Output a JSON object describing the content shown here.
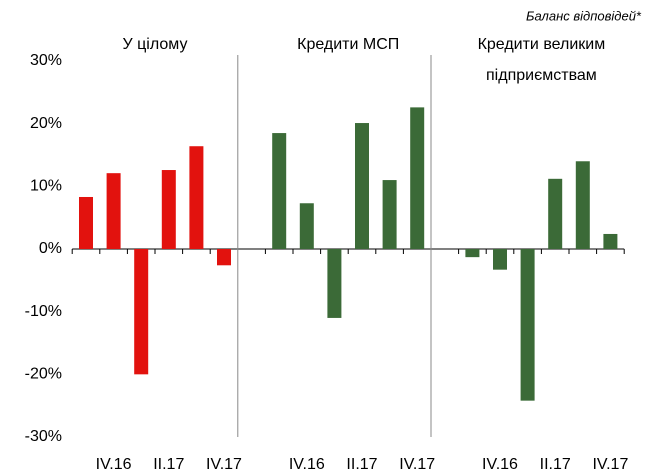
{
  "note": "Баланс відповідей*",
  "chart_data": [
    {
      "type": "bar",
      "title": [
        "У цілому"
      ],
      "color": "#e2120e",
      "categories": [
        null,
        "IV.16",
        null,
        "II.17",
        null,
        "IV.17"
      ],
      "values": [
        8.3,
        12.1,
        -20,
        12.6,
        16.4,
        -2.6
      ],
      "ylim": [
        -30,
        30
      ],
      "yticks": [
        {
          "value": -30,
          "label": "-30%"
        },
        {
          "value": -20,
          "label": "-20%"
        },
        {
          "value": -10,
          "label": "-10%"
        },
        {
          "value": 0,
          "label": "0%"
        },
        {
          "value": 10,
          "label": "10%"
        },
        {
          "value": 20,
          "label": "20%"
        },
        {
          "value": 30,
          "label": "30%"
        }
      ]
    },
    {
      "type": "bar",
      "title": [
        "Кредити МСП"
      ],
      "color": "#3b6a37",
      "categories": [
        null,
        "IV.16",
        null,
        "II.17",
        null,
        "IV.17"
      ],
      "values": [
        18.5,
        7.3,
        -11,
        20.1,
        11,
        22.6
      ],
      "ylim": [
        -30,
        30
      ]
    },
    {
      "type": "bar",
      "title": [
        "Кредити великим",
        "підприємствам"
      ],
      "color": "#3b6a37",
      "categories": [
        null,
        "IV.16",
        null,
        "II.17",
        null,
        "IV.17"
      ],
      "values": [
        -1.3,
        -3.3,
        -24.2,
        11.2,
        14,
        2.4
      ],
      "ylim": [
        -30,
        30
      ]
    }
  ]
}
